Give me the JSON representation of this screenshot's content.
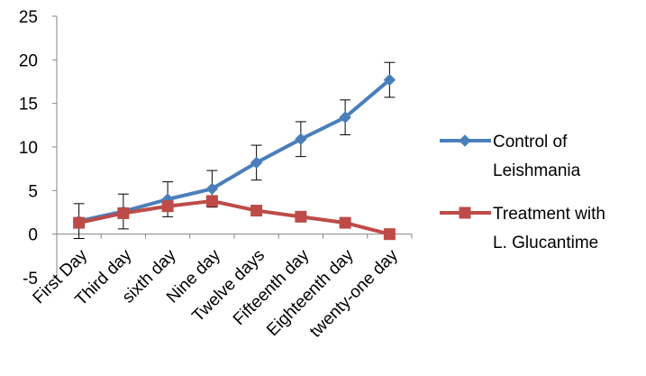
{
  "chart_data": {
    "type": "line",
    "categories": [
      "First Day",
      "Third day",
      "sixth day",
      "Nine day",
      "Twelve days",
      "Fifteenth day",
      "Eighteenth day",
      "twenty-one day"
    ],
    "ylim": [
      -5,
      25
    ],
    "yticks": [
      -5,
      0,
      5,
      10,
      15,
      20,
      25
    ],
    "grid": false,
    "legend_position": "right",
    "series": [
      {
        "name_lines": [
          "Control of",
          "Leishmania"
        ],
        "color": "#4A7EBB",
        "marker": "diamond",
        "values": [
          1.5,
          2.6,
          4.0,
          5.2,
          8.2,
          10.9,
          13.4,
          17.7
        ],
        "error": [
          2.0,
          2.0,
          2.0,
          2.1,
          2.0,
          2.0,
          2.0,
          2.0
        ]
      },
      {
        "name_lines": [
          "Treatment with",
          "L. Glucantime"
        ],
        "color": "#BE4B48",
        "marker": "square",
        "values": [
          1.3,
          2.4,
          3.2,
          3.8,
          2.7,
          2.0,
          1.3,
          0.0
        ]
      }
    ]
  }
}
